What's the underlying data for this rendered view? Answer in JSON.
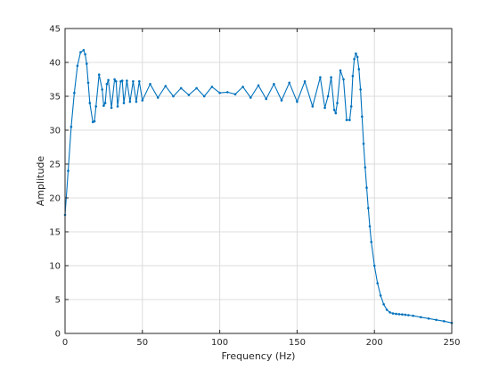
{
  "chart_data": {
    "type": "line",
    "title": "",
    "xlabel": "Frequency (Hz)",
    "ylabel": "Amplitude",
    "xlim": [
      0,
      250
    ],
    "ylim": [
      0,
      45
    ],
    "xticks": [
      0,
      50,
      100,
      150,
      200,
      250
    ],
    "yticks": [
      0,
      5,
      10,
      15,
      20,
      25,
      30,
      35,
      40,
      45
    ],
    "xtick_labels": [
      "0",
      "50",
      "100",
      "150",
      "200",
      "250"
    ],
    "ytick_labels": [
      "0",
      "5",
      "10",
      "15",
      "20",
      "25",
      "30",
      "35",
      "40",
      "45"
    ],
    "grid": true,
    "legend": "none",
    "series_color": "#0072bd",
    "marker": "point",
    "series": [
      {
        "x": [
          0,
          2,
          4,
          6,
          8,
          10,
          12,
          13,
          14,
          15,
          16,
          18,
          19,
          20,
          22,
          24,
          25,
          26,
          27,
          28,
          30,
          32,
          33,
          34,
          36,
          37,
          38,
          40,
          42,
          44,
          46,
          48,
          50,
          55,
          60,
          65,
          70,
          75,
          80,
          85,
          90,
          95,
          100,
          105,
          110,
          115,
          120,
          125,
          130,
          135,
          140,
          145,
          150,
          155,
          160,
          165,
          168,
          170,
          172,
          174,
          175,
          176,
          178,
          180,
          182,
          184,
          185,
          186,
          187,
          188,
          189,
          190,
          191,
          192,
          193,
          194,
          195,
          196,
          197,
          198,
          200,
          202,
          204,
          206,
          208,
          210,
          212,
          214,
          216,
          218,
          220,
          222,
          225,
          230,
          235,
          240,
          245,
          250
        ],
        "y": [
          17.5,
          24,
          30.5,
          35.5,
          39.5,
          41.5,
          41.8,
          41.2,
          39.8,
          37,
          34,
          31.2,
          31.3,
          33.5,
          38.2,
          36,
          33.6,
          34,
          36.8,
          37.4,
          33.3,
          37.5,
          37.2,
          33.5,
          37.2,
          37.3,
          34,
          37.3,
          34.2,
          37.2,
          34.2,
          37.2,
          34.4,
          36.8,
          34.8,
          36.5,
          35,
          36.2,
          35.2,
          36.2,
          35,
          36.4,
          35.5,
          35.6,
          35.3,
          36.4,
          34.8,
          36.6,
          34.6,
          36.8,
          34.4,
          37,
          34.2,
          37.2,
          33.5,
          37.8,
          33.3,
          35,
          37.8,
          33,
          32.5,
          34,
          38.8,
          37.5,
          31.5,
          31.5,
          33.5,
          38,
          40.5,
          41.3,
          40.8,
          39,
          36,
          32,
          28,
          24.5,
          21.5,
          18.5,
          15.8,
          13.5,
          10,
          7.4,
          5.6,
          4.3,
          3.5,
          3.1,
          2.95,
          2.88,
          2.84,
          2.8,
          2.75,
          2.7,
          2.6,
          2.4,
          2.2,
          2.0,
          1.8,
          1.55
        ]
      }
    ]
  }
}
